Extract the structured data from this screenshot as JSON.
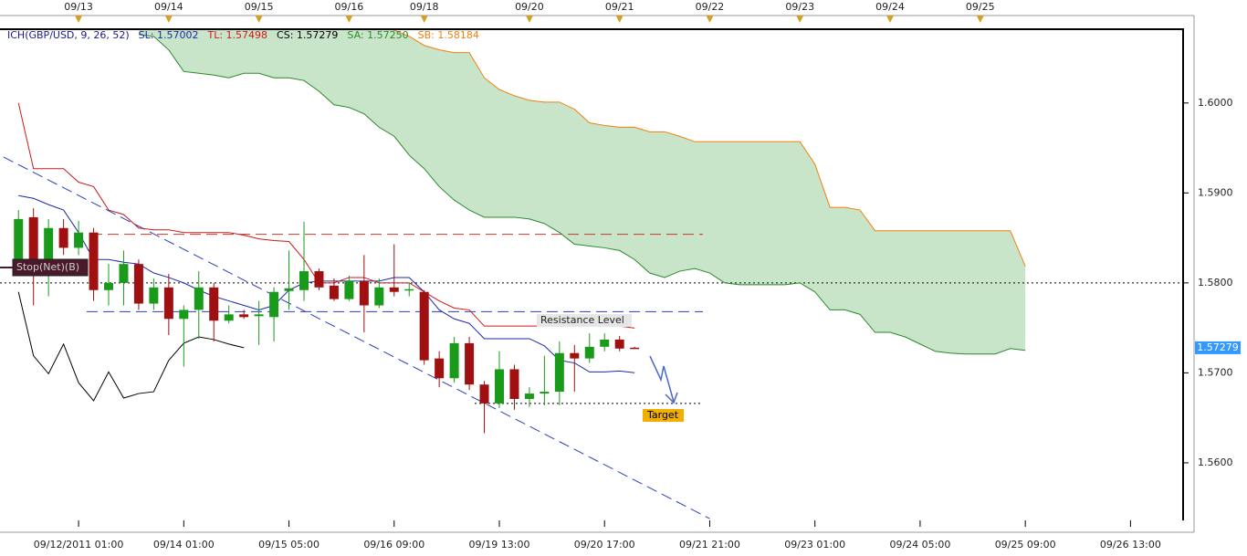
{
  "chart_data": {
    "type": "candlestick",
    "title": "ICH(GBP/USD, 9, 26, 52)",
    "title_color": "#1a1a8c",
    "categories": [
      null,
      null,
      null,
      null,
      "09/12/2011 01:00",
      null,
      null,
      null,
      null,
      null,
      null,
      "09/14 01:00",
      null,
      null,
      null,
      null,
      null,
      null,
      "09/15 05:00",
      null,
      null,
      null,
      null,
      null,
      null,
      "09/16 09:00",
      null,
      null,
      null,
      null,
      null,
      null,
      "09/19 13:00",
      null,
      null,
      null,
      null,
      null,
      null,
      "09/20 17:00",
      null,
      null,
      null,
      null,
      null,
      null,
      "09/21 21:00",
      null,
      null,
      null,
      null,
      null,
      null,
      "09/23 01:00",
      null,
      null,
      null,
      null,
      null,
      null,
      "09/24 05:00",
      null,
      null,
      null,
      null,
      null,
      null,
      "09/25 09:00",
      null,
      null,
      null,
      null,
      null,
      null,
      "09/26 13:00",
      null,
      null,
      null
    ],
    "top_ticks": [
      {
        "value": 4,
        "label": "09/13"
      },
      {
        "value": 10,
        "label": "09/14"
      },
      {
        "value": 16,
        "label": "09/15"
      },
      {
        "value": 22,
        "label": "09/16"
      },
      {
        "value": 27,
        "label": "09/18"
      },
      {
        "value": 34,
        "label": "09/20"
      },
      {
        "value": 40,
        "label": "09/21"
      },
      {
        "value": 46,
        "label": "09/22"
      },
      {
        "value": 52,
        "label": "09/23"
      },
      {
        "value": 58,
        "label": "09/24"
      },
      {
        "value": 64,
        "label": "09/25"
      }
    ],
    "candles": {
      "up_color": "#1a9a1a",
      "down_color": "#a01010",
      "open": [
        1.5826,
        1.5873,
        1.5826,
        1.5861,
        1.5839,
        1.5856,
        1.5792,
        1.58,
        1.5821,
        1.5777,
        1.5795,
        1.576,
        1.577,
        1.5795,
        1.5758,
        1.5765,
        1.5763,
        1.5762,
        1.5791,
        1.5792,
        1.5813,
        1.5797,
        1.5782,
        1.5802,
        1.5775,
        1.5795,
        1.5792,
        1.579,
        1.5716,
        1.5694,
        1.5733,
        1.5687,
        1.5666,
        1.5704,
        1.5671,
        1.5677,
        1.5679,
        1.5722,
        1.5716,
        1.5729,
        1.5737,
        1.5728,
        null,
        null,
        null,
        null,
        null,
        null,
        null,
        null,
        null,
        null,
        null,
        null,
        null,
        null,
        null,
        null,
        null,
        null,
        null,
        null,
        null,
        null,
        null,
        null,
        null,
        null,
        null,
        null,
        null,
        null,
        null,
        null,
        null,
        null,
        null,
        null
      ],
      "high": [
        1.5881,
        1.5883,
        1.5871,
        1.5871,
        1.5869,
        1.5861,
        1.5821,
        1.5836,
        1.5826,
        1.5805,
        1.581,
        1.5775,
        1.5813,
        1.58,
        1.5775,
        1.577,
        1.578,
        1.5795,
        1.5836,
        1.5868,
        1.5816,
        1.5805,
        1.5808,
        1.5831,
        1.5805,
        1.5843,
        1.58,
        1.5792,
        1.5724,
        1.574,
        1.574,
        1.5691,
        1.5724,
        1.5709,
        1.5684,
        1.5719,
        1.5735,
        1.5731,
        1.5744,
        1.5744,
        1.5741,
        1.5729,
        null,
        null,
        null,
        null,
        null,
        null,
        null,
        null,
        null,
        null,
        null,
        null,
        null,
        null,
        null,
        null,
        null,
        null,
        null,
        null,
        null,
        null,
        null,
        null,
        null,
        null,
        null,
        null,
        null,
        null,
        null,
        null,
        null,
        null,
        null,
        null
      ],
      "low": [
        1.5816,
        1.5775,
        1.5785,
        1.5831,
        1.5831,
        1.578,
        1.5775,
        1.5775,
        1.577,
        1.577,
        1.5742,
        1.5707,
        1.5738,
        1.5735,
        1.5755,
        1.576,
        1.5731,
        1.5735,
        1.577,
        1.578,
        1.5792,
        1.578,
        1.578,
        1.5745,
        1.5772,
        1.5785,
        1.5785,
        1.5709,
        1.5684,
        1.5689,
        1.5681,
        1.5633,
        1.5661,
        1.5659,
        1.5662,
        1.5664,
        1.5664,
        1.5679,
        1.5711,
        1.5724,
        1.5724,
        1.5727,
        null,
        null,
        null,
        null,
        null,
        null,
        null,
        null,
        null,
        null,
        null,
        null,
        null,
        null,
        null,
        null,
        null,
        null,
        null,
        null,
        null,
        null,
        null,
        null,
        null,
        null,
        null,
        null,
        null,
        null,
        null,
        null,
        null,
        null,
        null,
        null
      ],
      "close": [
        1.5871,
        1.5826,
        1.5861,
        1.5839,
        1.5856,
        1.5792,
        1.58,
        1.5821,
        1.5777,
        1.5795,
        1.576,
        1.577,
        1.5795,
        1.5758,
        1.5765,
        1.5762,
        1.5765,
        1.579,
        1.5794,
        1.5813,
        1.5795,
        1.5782,
        1.5802,
        1.5775,
        1.5795,
        1.579,
        1.5793,
        1.5714,
        1.5694,
        1.5733,
        1.5687,
        1.5666,
        1.5704,
        1.5671,
        1.5677,
        1.5679,
        1.5722,
        1.5716,
        1.5729,
        1.5737,
        1.5727,
        1.57279,
        null,
        null,
        null,
        null,
        null,
        null,
        null,
        null,
        null,
        null,
        null,
        null,
        null,
        null,
        null,
        null,
        null,
        null,
        null,
        null,
        null,
        null,
        null,
        null,
        null,
        null,
        null,
        null,
        null,
        null,
        null,
        null,
        null,
        null,
        null,
        null
      ]
    },
    "series": [
      {
        "name": "SL: 1.57002",
        "color": "#1a2aa8",
        "values": [
          1.5897,
          1.5894,
          1.5887,
          1.5881,
          1.5856,
          1.5826,
          1.5826,
          1.5823,
          1.5821,
          1.5811,
          1.5806,
          1.58,
          1.5792,
          1.5785,
          1.578,
          1.5775,
          1.577,
          1.5775,
          1.5792,
          1.58,
          1.5802,
          1.5802,
          1.5802,
          1.5802,
          1.5802,
          1.5806,
          1.5806,
          1.579,
          1.577,
          1.576,
          1.5755,
          1.5738,
          1.5738,
          1.5738,
          1.5738,
          1.573,
          1.5714,
          1.5711,
          1.5701,
          1.5701,
          1.5702,
          1.57002,
          null,
          null,
          null,
          null,
          null,
          null,
          null,
          null,
          null,
          null,
          null,
          null,
          null,
          null,
          null,
          null,
          null,
          null,
          null,
          null,
          null,
          null,
          null,
          null,
          null,
          null,
          null,
          null,
          null,
          null,
          null,
          null,
          null,
          null,
          null,
          null
        ]
      },
      {
        "name": "TL: 1.57498",
        "color": "#cc1a1a",
        "values": [
          1.6,
          1.5927,
          1.5927,
          1.5927,
          1.5912,
          1.5907,
          1.5881,
          1.5876,
          1.5861,
          1.5859,
          1.5859,
          1.5856,
          1.5856,
          1.5856,
          1.5856,
          1.5853,
          1.5849,
          1.5847,
          1.5846,
          1.5826,
          1.58,
          1.58,
          1.5806,
          1.5806,
          1.58,
          1.58,
          1.58,
          1.579,
          1.578,
          1.5772,
          1.577,
          1.5752,
          1.5752,
          1.5752,
          1.5752,
          1.5752,
          1.5752,
          1.5752,
          1.5752,
          1.5752,
          1.5752,
          1.57498,
          null,
          null,
          null,
          null,
          null,
          null,
          null,
          null,
          null,
          null,
          null,
          null,
          null,
          null,
          null,
          null,
          null,
          null,
          null,
          null,
          null,
          null,
          null,
          null,
          null,
          null,
          null,
          null,
          null,
          null,
          null,
          null,
          null,
          null,
          null,
          null
        ]
      },
      {
        "name": "CS: 1.57279",
        "color": "#000000",
        "values": [
          1.579,
          1.5719,
          1.5699,
          1.5732,
          1.5689,
          1.5669,
          1.5701,
          1.5672,
          1.5677,
          1.5679,
          1.5714,
          1.5733,
          1.574,
          1.5737,
          1.5732,
          1.57279,
          null,
          null,
          null,
          null,
          null,
          null,
          null,
          null,
          null,
          null,
          null,
          null,
          null,
          null,
          null,
          null,
          null,
          null,
          null,
          null,
          null,
          null,
          null,
          null,
          null,
          null,
          null,
          null,
          null,
          null,
          null,
          null,
          null,
          null,
          null,
          null,
          null,
          null,
          null,
          null,
          null,
          null,
          null,
          null,
          null,
          null,
          null,
          null,
          null,
          null,
          null,
          null,
          null,
          null,
          null,
          null,
          null,
          null,
          null,
          null,
          null,
          null
        ]
      },
      {
        "name": "SA: 1.57250",
        "color": "#2a8a2a",
        "values": [
          null,
          null,
          null,
          null,
          null,
          null,
          null,
          null,
          1.6076,
          1.6074,
          1.6059,
          1.6035,
          1.6033,
          1.6031,
          1.6028,
          1.6033,
          1.6033,
          1.6028,
          1.6028,
          1.6025,
          1.6013,
          1.5998,
          1.5995,
          1.5988,
          1.5973,
          1.5963,
          1.5942,
          1.5927,
          1.5907,
          1.5892,
          1.5881,
          1.5873,
          1.5873,
          1.5873,
          1.5871,
          1.5866,
          1.5856,
          1.5843,
          1.5841,
          1.5839,
          1.5836,
          1.5826,
          1.5811,
          1.5806,
          1.5813,
          1.5816,
          1.5811,
          1.58,
          1.5798,
          1.5798,
          1.5798,
          1.5798,
          1.58,
          1.579,
          1.577,
          1.577,
          1.5765,
          1.5745,
          1.5745,
          1.574,
          1.5732,
          1.5724,
          1.5722,
          1.5721,
          1.5721,
          1.5721,
          1.5727,
          1.5725,
          null,
          null,
          null,
          null,
          null,
          null,
          null,
          null,
          null,
          null
        ]
      },
      {
        "name": "SB: 1.58184",
        "color": "#f08010",
        "values": [
          null,
          null,
          null,
          null,
          null,
          null,
          null,
          null,
          1.6086,
          1.6086,
          1.6086,
          1.6086,
          1.6086,
          1.6086,
          1.6086,
          1.6086,
          1.6086,
          1.6086,
          1.6086,
          1.6086,
          1.6086,
          1.6086,
          1.6086,
          1.6086,
          1.6086,
          1.6081,
          1.6074,
          1.6064,
          1.6059,
          1.6056,
          1.6056,
          1.6028,
          1.6015,
          1.6008,
          1.6003,
          1.6001,
          1.6001,
          1.5993,
          1.5978,
          1.5975,
          1.5973,
          1.5973,
          1.5968,
          1.5968,
          1.5963,
          1.5957,
          1.5957,
          1.5957,
          1.5957,
          1.5957,
          1.5957,
          1.5957,
          1.5957,
          1.5932,
          1.5884,
          1.5884,
          1.5881,
          1.5858,
          1.5858,
          1.5858,
          1.5858,
          1.5858,
          1.5858,
          1.5858,
          1.5858,
          1.5858,
          1.5858,
          1.58184,
          null,
          null,
          null,
          null,
          null,
          null,
          null,
          null,
          null,
          null
        ]
      }
    ],
    "cloud_color": "#c9e5c9",
    "levels": [
      {
        "value": 1.5854,
        "color": "#c0392b",
        "style": "dashed"
      },
      {
        "value": 1.5768,
        "color": "#2a3fbf",
        "style": "dashed"
      },
      {
        "value": 1.58,
        "color": "#000000",
        "style": "dotted"
      },
      {
        "value": 1.5666,
        "color": "#000000",
        "style": "dotted"
      }
    ],
    "trendline": {
      "x": [
        -1,
        46
      ],
      "y": [
        1.594,
        1.5538
      ],
      "color": "#2a3fbf"
    },
    "annotations": [
      "Stop(Net)(B)",
      "Resistance Level",
      "Target"
    ],
    "price_label": {
      "value": 1.57279,
      "label": "1.57279"
    },
    "ylim": [
      1.5536,
      1.6082
    ],
    "yticks": [
      {
        "value": 1.56,
        "label": "1.5600"
      },
      {
        "value": 1.57,
        "label": "1.5700"
      },
      {
        "value": 1.58,
        "label": "1.5800"
      },
      {
        "value": 1.59,
        "label": "1.5900"
      },
      {
        "value": 1.6,
        "label": "1.6000"
      }
    ]
  }
}
